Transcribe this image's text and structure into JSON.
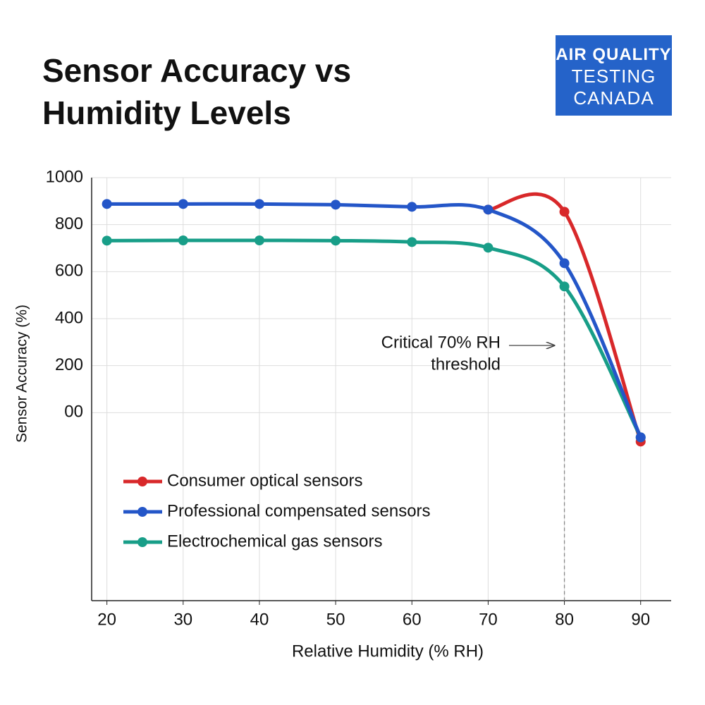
{
  "logo": [
    "AIR QUALITY",
    "TESTING",
    "CANADA"
  ],
  "chart_data": {
    "type": "line",
    "title": "Sensor Accuracy vs Humidity Levels",
    "x_label": "Relative Humidity (% RH)",
    "y_label": "Sensor Accuracy (%)",
    "x": [
      20,
      30,
      40,
      50,
      60,
      70,
      80,
      90
    ],
    "series": [
      {
        "name": "Consumer optical sensors",
        "color": "#d8282a",
        "values": [
          null,
          null,
          null,
          null,
          null,
          864,
          855,
          -123
        ]
      },
      {
        "name": "Professional compensated sensors",
        "color": "#2456c8",
        "values": [
          888,
          888,
          888,
          885,
          876,
          864,
          636,
          -105
        ]
      },
      {
        "name": "Electrochemical gas sensors",
        "color": "#189e88",
        "values": [
          732,
          733,
          733,
          732,
          726,
          702,
          537,
          -105
        ]
      }
    ],
    "xlim": [
      18,
      94
    ],
    "xticks": [
      20,
      30,
      40,
      50,
      60,
      70,
      80,
      90
    ],
    "ylim": [
      -800,
      1000
    ],
    "yticks": [
      1000,
      800,
      600,
      400,
      200,
      {
        "value": 0,
        "label": "00"
      }
    ],
    "grid": true,
    "legend": "lower left",
    "annotation": {
      "text": [
        "Critical 70% RH",
        "threshold"
      ],
      "x": 80
    }
  }
}
